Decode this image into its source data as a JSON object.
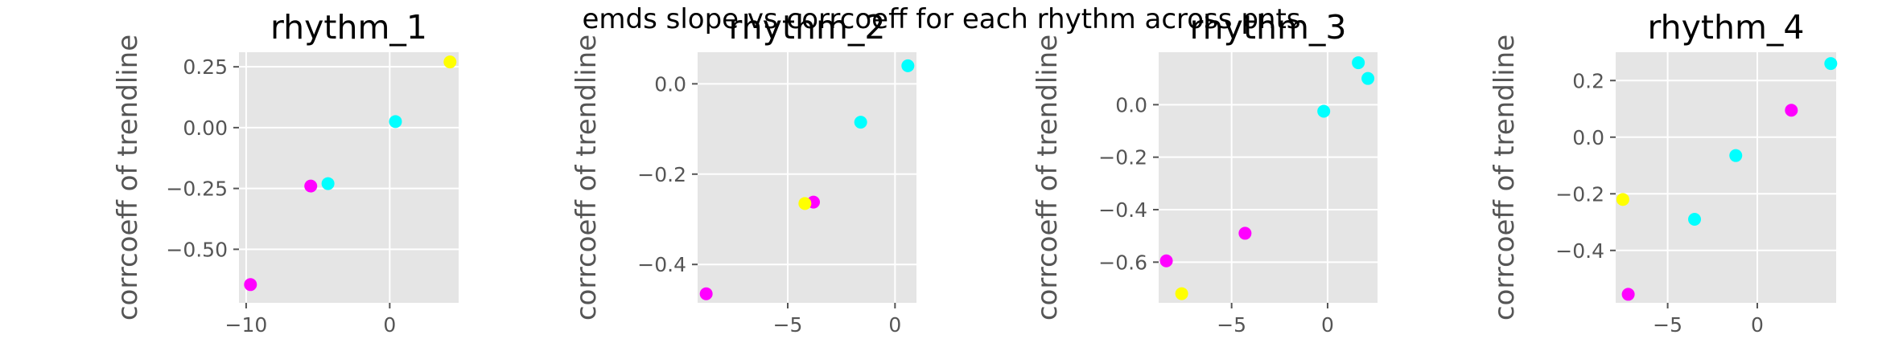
{
  "figure": {
    "suptitle": "emds slope vs corrcoeff for each rhythm across pnts"
  },
  "colors": {
    "panel_bg": "#e5e5e5",
    "grid": "#ffffff",
    "cyan": "#00ffff",
    "magenta": "#ff00ff",
    "yellow": "#ffff00"
  },
  "chart_data": [
    {
      "type": "scatter",
      "title": "rhythm_1",
      "xlabel": "",
      "ylabel": "corrcoeff of trendline",
      "xlim": [
        -10.5,
        4.8
      ],
      "ylim": [
        -0.72,
        0.31
      ],
      "xticks": [
        -10,
        0
      ],
      "yticks": [
        -0.5,
        -0.25,
        0.0,
        0.25
      ],
      "xtick_labels": [
        "−10",
        "0"
      ],
      "ytick_labels": [
        "−0.50",
        "−0.25",
        "0.00",
        "0.25"
      ],
      "points": [
        {
          "x": -9.7,
          "y": -0.645,
          "color": "magenta"
        },
        {
          "x": -5.5,
          "y": -0.24,
          "color": "magenta"
        },
        {
          "x": -4.3,
          "y": -0.23,
          "color": "cyan"
        },
        {
          "x": 0.4,
          "y": 0.025,
          "color": "cyan"
        },
        {
          "x": 4.2,
          "y": 0.27,
          "color": "yellow"
        }
      ]
    },
    {
      "type": "scatter",
      "title": "rhythm_2",
      "xlabel": "",
      "ylabel": "corrcoeff of trendline",
      "xlim": [
        -9.2,
        1.0
      ],
      "ylim": [
        -0.485,
        0.07
      ],
      "xticks": [
        -5,
        0
      ],
      "yticks": [
        -0.4,
        -0.2,
        0.0
      ],
      "xtick_labels": [
        "−5",
        "0"
      ],
      "ytick_labels": [
        "−0.4",
        "−0.2",
        "0.0"
      ],
      "points": [
        {
          "x": -8.8,
          "y": -0.465,
          "color": "magenta"
        },
        {
          "x": -3.8,
          "y": -0.262,
          "color": "magenta"
        },
        {
          "x": -4.2,
          "y": -0.265,
          "color": "yellow"
        },
        {
          "x": -1.6,
          "y": -0.085,
          "color": "cyan"
        },
        {
          "x": 0.6,
          "y": 0.04,
          "color": "cyan"
        }
      ]
    },
    {
      "type": "scatter",
      "title": "rhythm_3",
      "xlabel": "",
      "ylabel": "corrcoeff of trendline",
      "xlim": [
        -8.8,
        2.6
      ],
      "ylim": [
        -0.755,
        0.2
      ],
      "xticks": [
        -5,
        0
      ],
      "yticks": [
        -0.6,
        -0.4,
        -0.2,
        0.0
      ],
      "xtick_labels": [
        "−5",
        "0"
      ],
      "ytick_labels": [
        "−0.6",
        "−0.4",
        "−0.2",
        "0.0"
      ],
      "points": [
        {
          "x": -8.4,
          "y": -0.595,
          "color": "magenta"
        },
        {
          "x": -7.6,
          "y": -0.72,
          "color": "yellow"
        },
        {
          "x": -4.3,
          "y": -0.49,
          "color": "magenta"
        },
        {
          "x": -0.2,
          "y": -0.025,
          "color": "cyan"
        },
        {
          "x": 1.6,
          "y": 0.16,
          "color": "cyan"
        },
        {
          "x": 2.1,
          "y": 0.1,
          "color": "cyan"
        }
      ]
    },
    {
      "type": "scatter",
      "title": "rhythm_4",
      "xlabel": "",
      "ylabel": "corrcoeff of trendline",
      "xlim": [
        -7.9,
        4.4
      ],
      "ylim": [
        -0.585,
        0.3
      ],
      "xticks": [
        -5,
        0
      ],
      "yticks": [
        -0.4,
        -0.2,
        0.0,
        0.2
      ],
      "xtick_labels": [
        "−5",
        "0"
      ],
      "ytick_labels": [
        "−0.4",
        "−0.2",
        "0.0",
        "0.2"
      ],
      "points": [
        {
          "x": -7.5,
          "y": -0.22,
          "color": "yellow"
        },
        {
          "x": -7.2,
          "y": -0.555,
          "color": "magenta"
        },
        {
          "x": -3.5,
          "y": -0.29,
          "color": "cyan"
        },
        {
          "x": -1.2,
          "y": -0.065,
          "color": "cyan"
        },
        {
          "x": 1.9,
          "y": 0.095,
          "color": "magenta"
        },
        {
          "x": 4.1,
          "y": 0.26,
          "color": "cyan"
        }
      ]
    }
  ]
}
